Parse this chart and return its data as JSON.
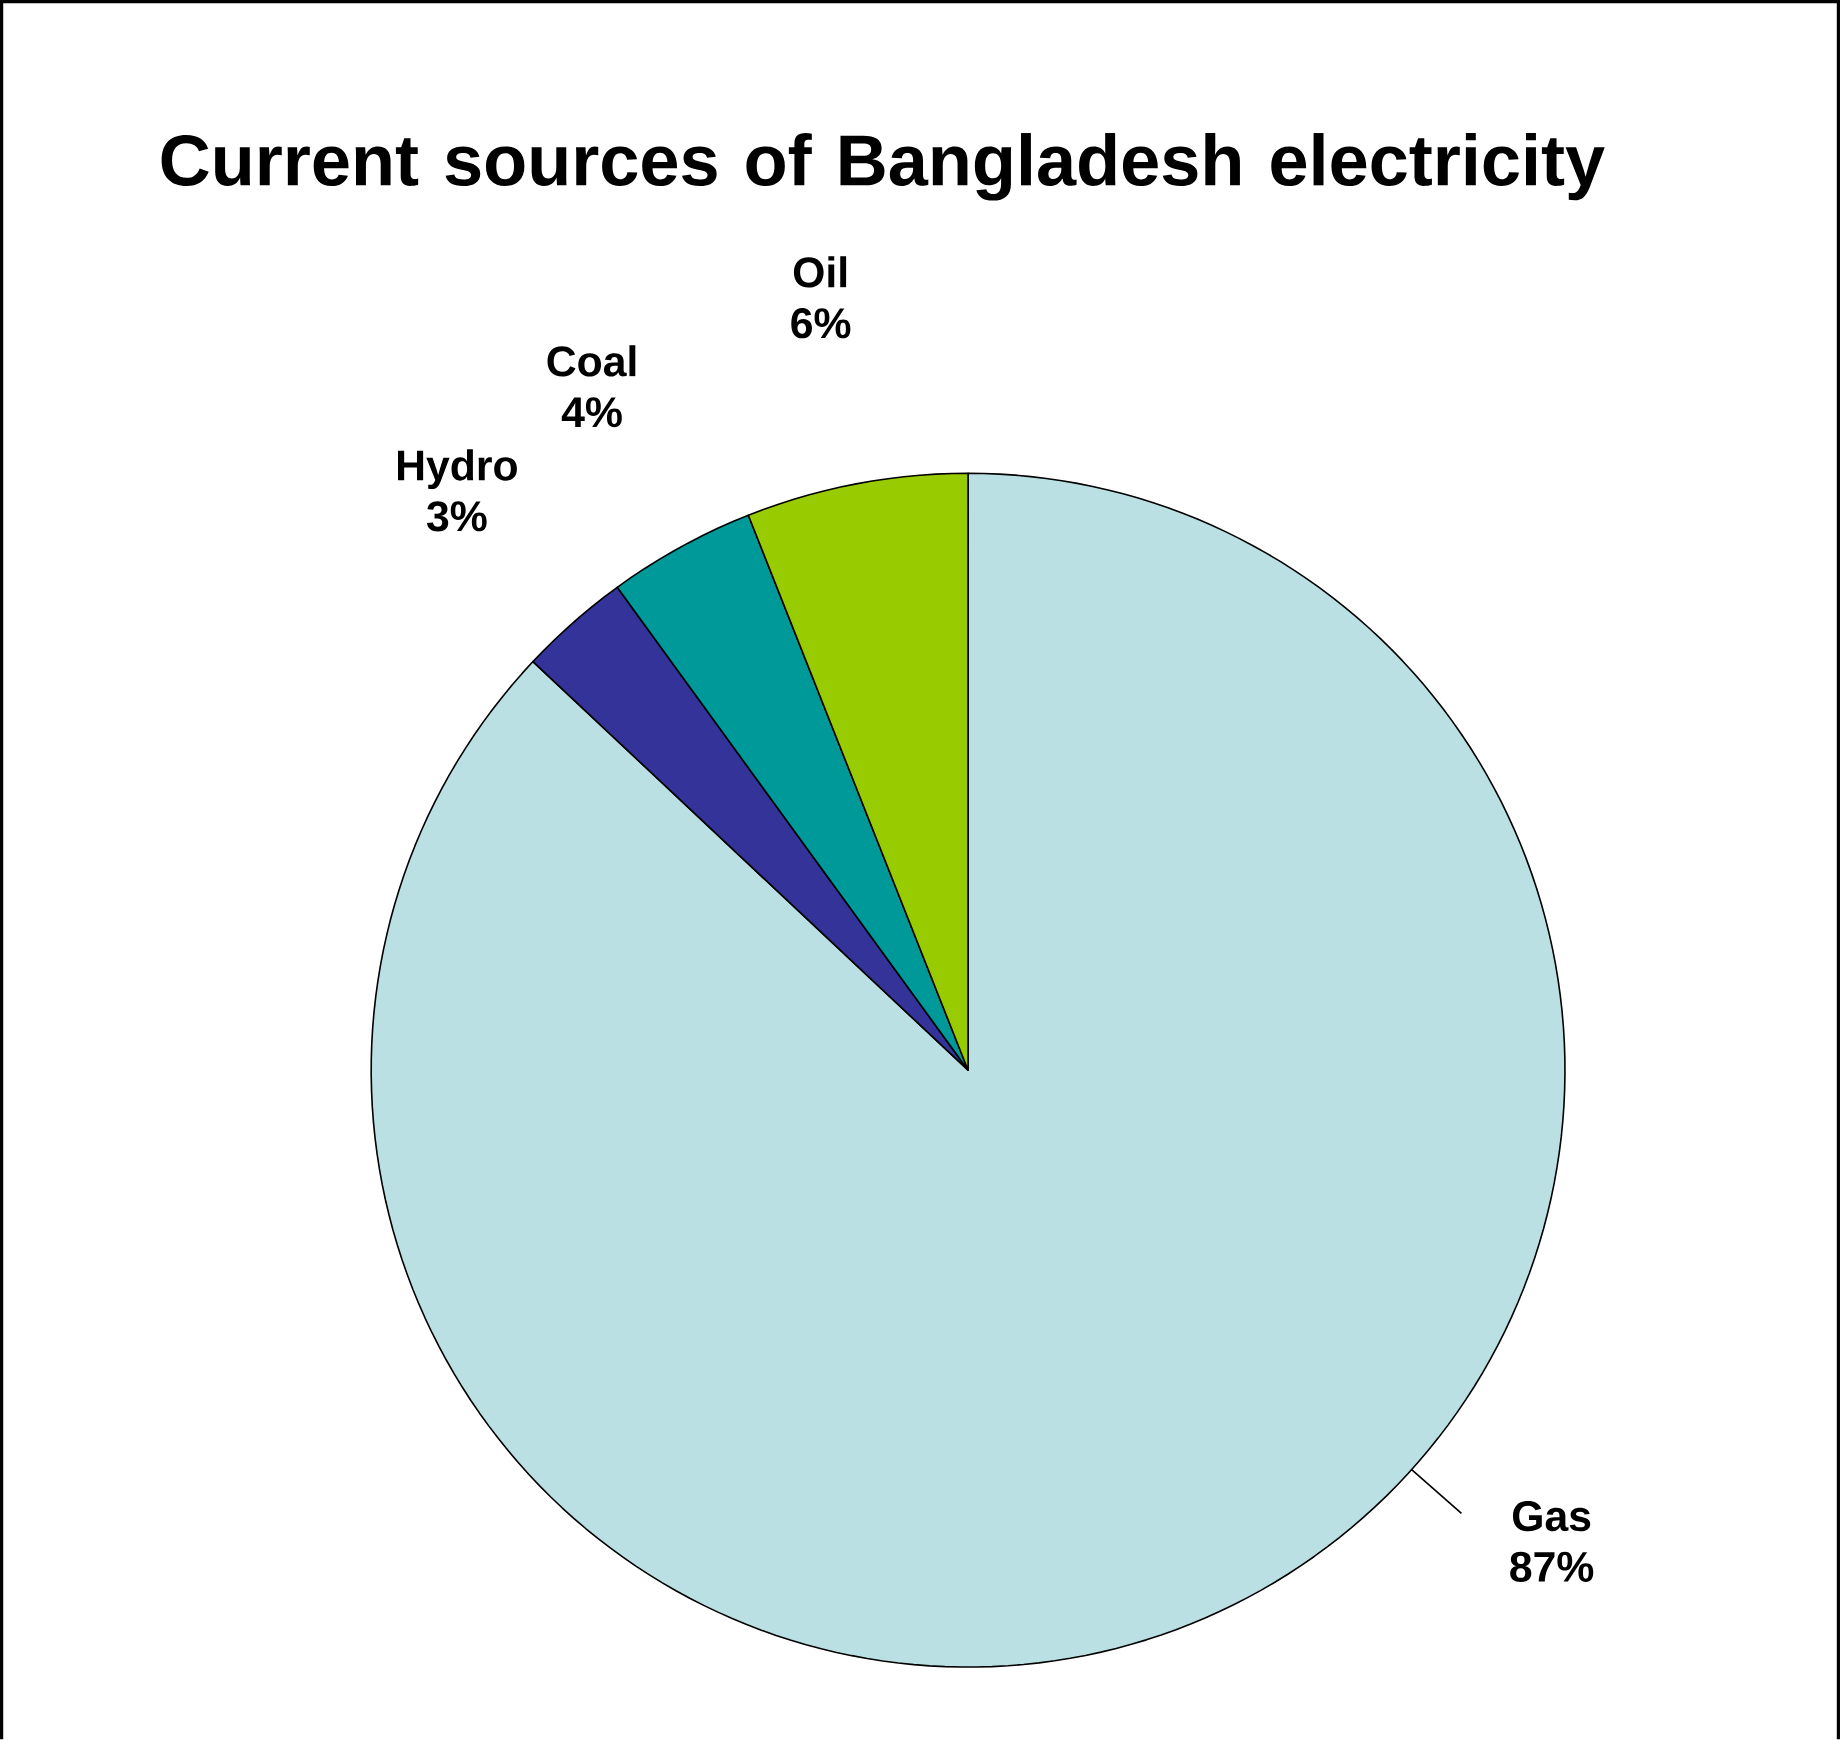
{
  "chart_data": {
    "type": "pie",
    "title": "Current sources of Bangladesh electricity",
    "categories": [
      "Gas",
      "Hydro",
      "Coal",
      "Oil"
    ],
    "values": [
      87,
      3,
      4,
      6
    ],
    "value_labels": [
      "87%",
      "3%",
      "4%",
      "6%"
    ],
    "colors": [
      "#bbe0e3",
      "#333399",
      "#009999",
      "#99cc00"
    ]
  }
}
